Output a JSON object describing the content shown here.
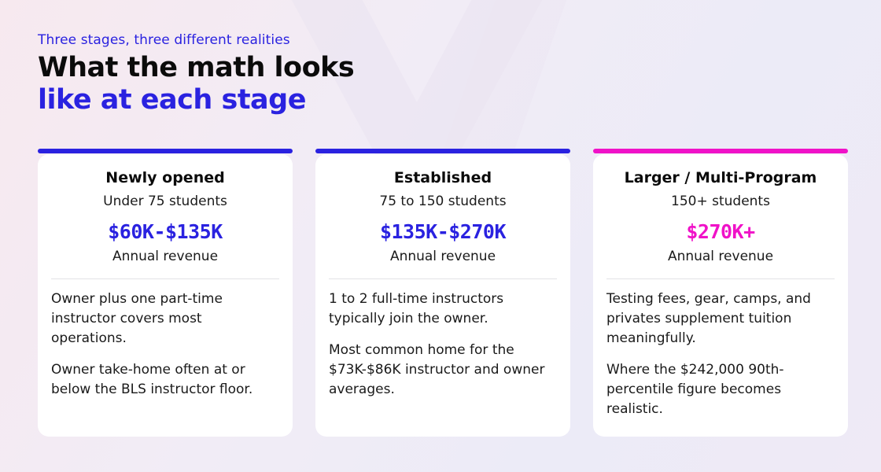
{
  "header": {
    "eyebrow": "Three stages, three different realities",
    "title_line1": "What the math looks",
    "title_line2": "like at each stage"
  },
  "colors": {
    "brand_blue": "#2a22e0",
    "magenta": "#f012c8"
  },
  "cards": [
    {
      "title": "Newly opened",
      "students": "Under 75 students",
      "range": "$60K-$135K",
      "range_label": "Annual revenue",
      "paragraphs": [
        "Owner plus one part-time instructor covers most operations.",
        "Owner take-home often at or below the BLS instructor floor."
      ],
      "accent": "#2a22e0"
    },
    {
      "title": "Established",
      "students": "75 to 150 students",
      "range": "$135K-$270K",
      "range_label": "Annual revenue",
      "paragraphs": [
        "1 to 2 full-time instructors typically join the owner.",
        "Most common home for the $73K-$86K instructor and owner averages."
      ],
      "accent": "#2a22e0"
    },
    {
      "title": "Larger / Multi-Program",
      "students": "150+ students",
      "range": "$270K+",
      "range_label": "Annual revenue",
      "paragraphs": [
        "Testing fees, gear, camps, and privates supplement tuition meaningfully.",
        "Where the $242,000 90th-percentile figure becomes realistic."
      ],
      "accent": "#f012c8"
    }
  ]
}
